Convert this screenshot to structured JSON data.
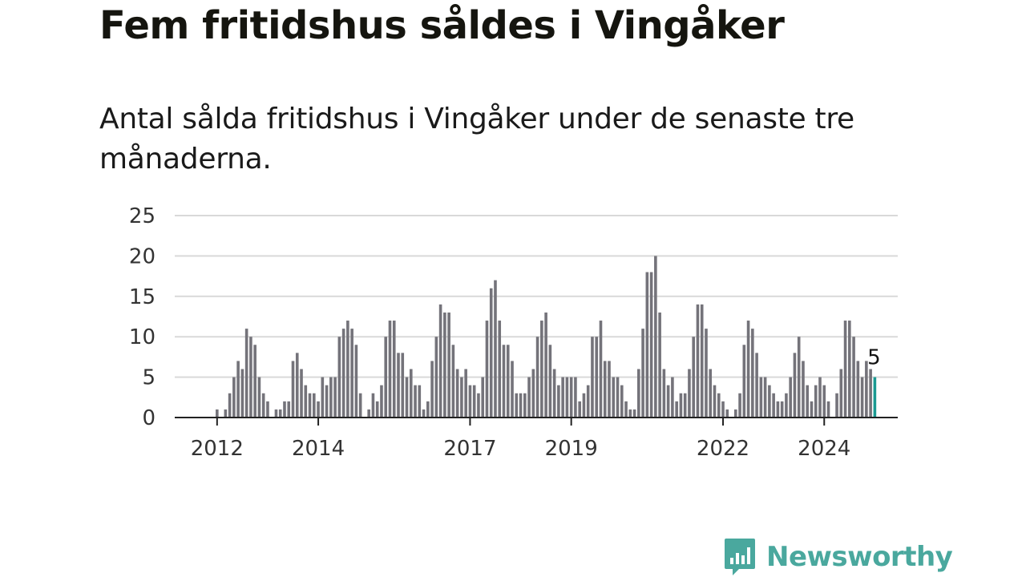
{
  "title": "Fem fritidshus såldes i Vingåker",
  "subtitle": "Antal sålda fritidshus i Vingåker under de senaste tre månaderna.",
  "brand": "Newsworthy",
  "colors": {
    "bar": "#74737a",
    "highlight": "#1b9a92",
    "grid": "#d9d9d9",
    "axis": "#222222",
    "brand": "#4aa89e"
  },
  "chart_data": {
    "type": "bar",
    "ylim": [
      0,
      25
    ],
    "yticks": [
      0,
      5,
      10,
      15,
      20,
      25
    ],
    "xticks": [
      {
        "label": "2012",
        "index": 2
      },
      {
        "label": "2014",
        "index": 26
      },
      {
        "label": "2017",
        "index": 62
      },
      {
        "label": "2019",
        "index": 86
      },
      {
        "label": "2022",
        "index": 122
      },
      {
        "label": "2024",
        "index": 146
      }
    ],
    "grid": true,
    "highlight_label": "5",
    "values": [
      0,
      0,
      1,
      0,
      1,
      3,
      5,
      7,
      6,
      11,
      10,
      9,
      5,
      3,
      2,
      0,
      1,
      1,
      2,
      2,
      7,
      8,
      6,
      4,
      3,
      3,
      2,
      5,
      4,
      5,
      5,
      10,
      11,
      12,
      11,
      9,
      3,
      0,
      1,
      3,
      2,
      4,
      10,
      12,
      12,
      8,
      8,
      5,
      6,
      4,
      4,
      1,
      2,
      7,
      10,
      14,
      13,
      13,
      9,
      6,
      5,
      6,
      4,
      4,
      3,
      5,
      12,
      16,
      17,
      12,
      9,
      9,
      7,
      3,
      3,
      3,
      5,
      6,
      10,
      12,
      13,
      9,
      6,
      4,
      5,
      5,
      5,
      5,
      2,
      3,
      4,
      10,
      10,
      12,
      7,
      7,
      5,
      5,
      4,
      2,
      1,
      1,
      6,
      11,
      18,
      18,
      20,
      13,
      6,
      4,
      5,
      2,
      3,
      3,
      6,
      10,
      14,
      14,
      11,
      6,
      4,
      3,
      2,
      1,
      0,
      1,
      3,
      9,
      12,
      11,
      8,
      5,
      5,
      4,
      3,
      2,
      2,
      3,
      5,
      8,
      10,
      7,
      4,
      2,
      4,
      5,
      4,
      2,
      0,
      3,
      6,
      12,
      12,
      10,
      7,
      5,
      7,
      6,
      5
    ]
  }
}
